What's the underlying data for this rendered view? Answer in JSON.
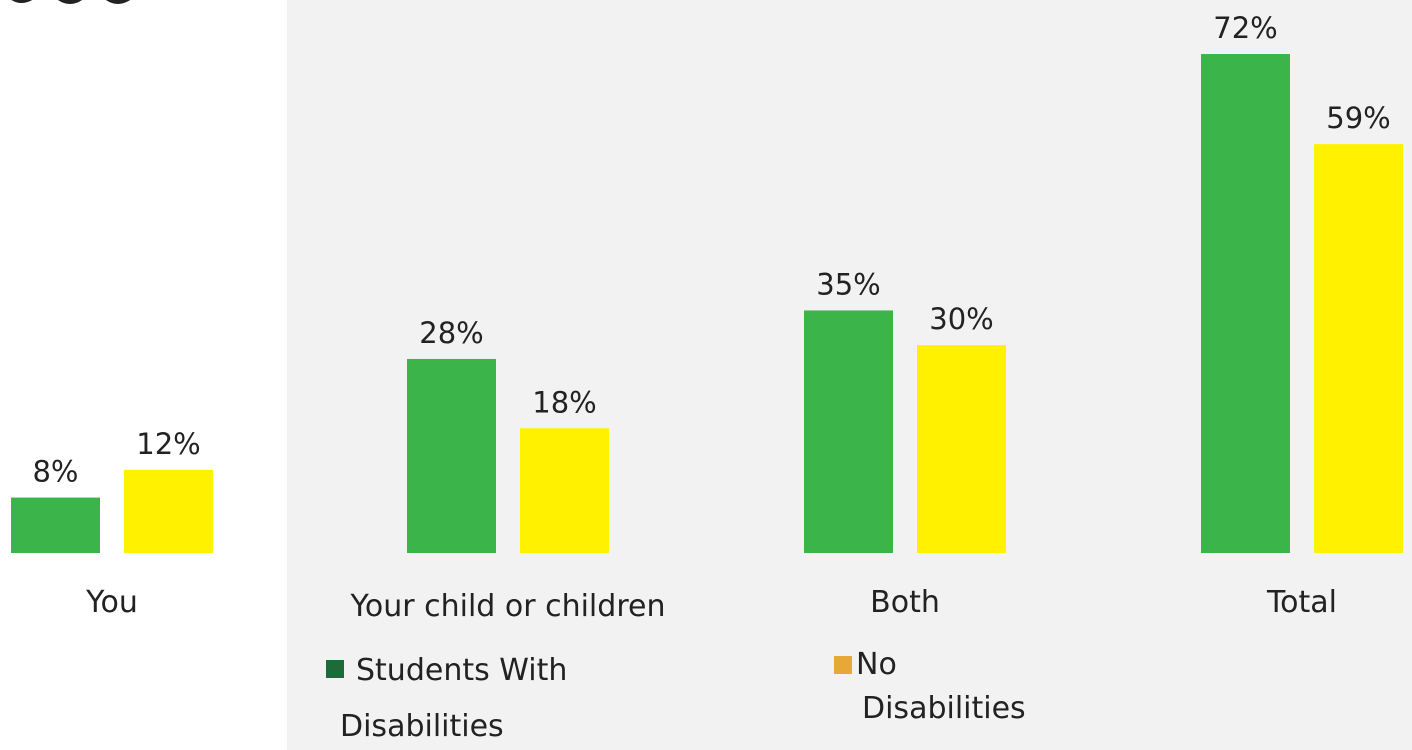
{
  "chart_data": {
    "type": "bar",
    "title": "",
    "xlabel": "",
    "ylabel": "",
    "ylim": [
      0,
      80
    ],
    "grid": false,
    "legend_placement": "bottom",
    "value_format": "%",
    "categories": [
      "You",
      "Your child or children",
      "Both",
      "Total"
    ],
    "series": [
      {
        "name": "Students With Disabilities",
        "name_lines": [
          "Students With",
          "Disabilities"
        ],
        "color": "#3bb54a",
        "legend_color": "#1e6b3a",
        "values": [
          8,
          28,
          35,
          72
        ],
        "labels": [
          "8%",
          "28%",
          "35%",
          "72%"
        ]
      },
      {
        "name": "No Disabilities",
        "name_lines": [
          "No",
          "Disabilities"
        ],
        "color": "#fff100",
        "legend_color": "#e8a838",
        "values": [
          12,
          18,
          30,
          59
        ],
        "labels": [
          "12%",
          "18%",
          "30%",
          "59%"
        ]
      }
    ]
  },
  "colors": {
    "panel_background": "#f2f2f2",
    "text": "#222222"
  }
}
